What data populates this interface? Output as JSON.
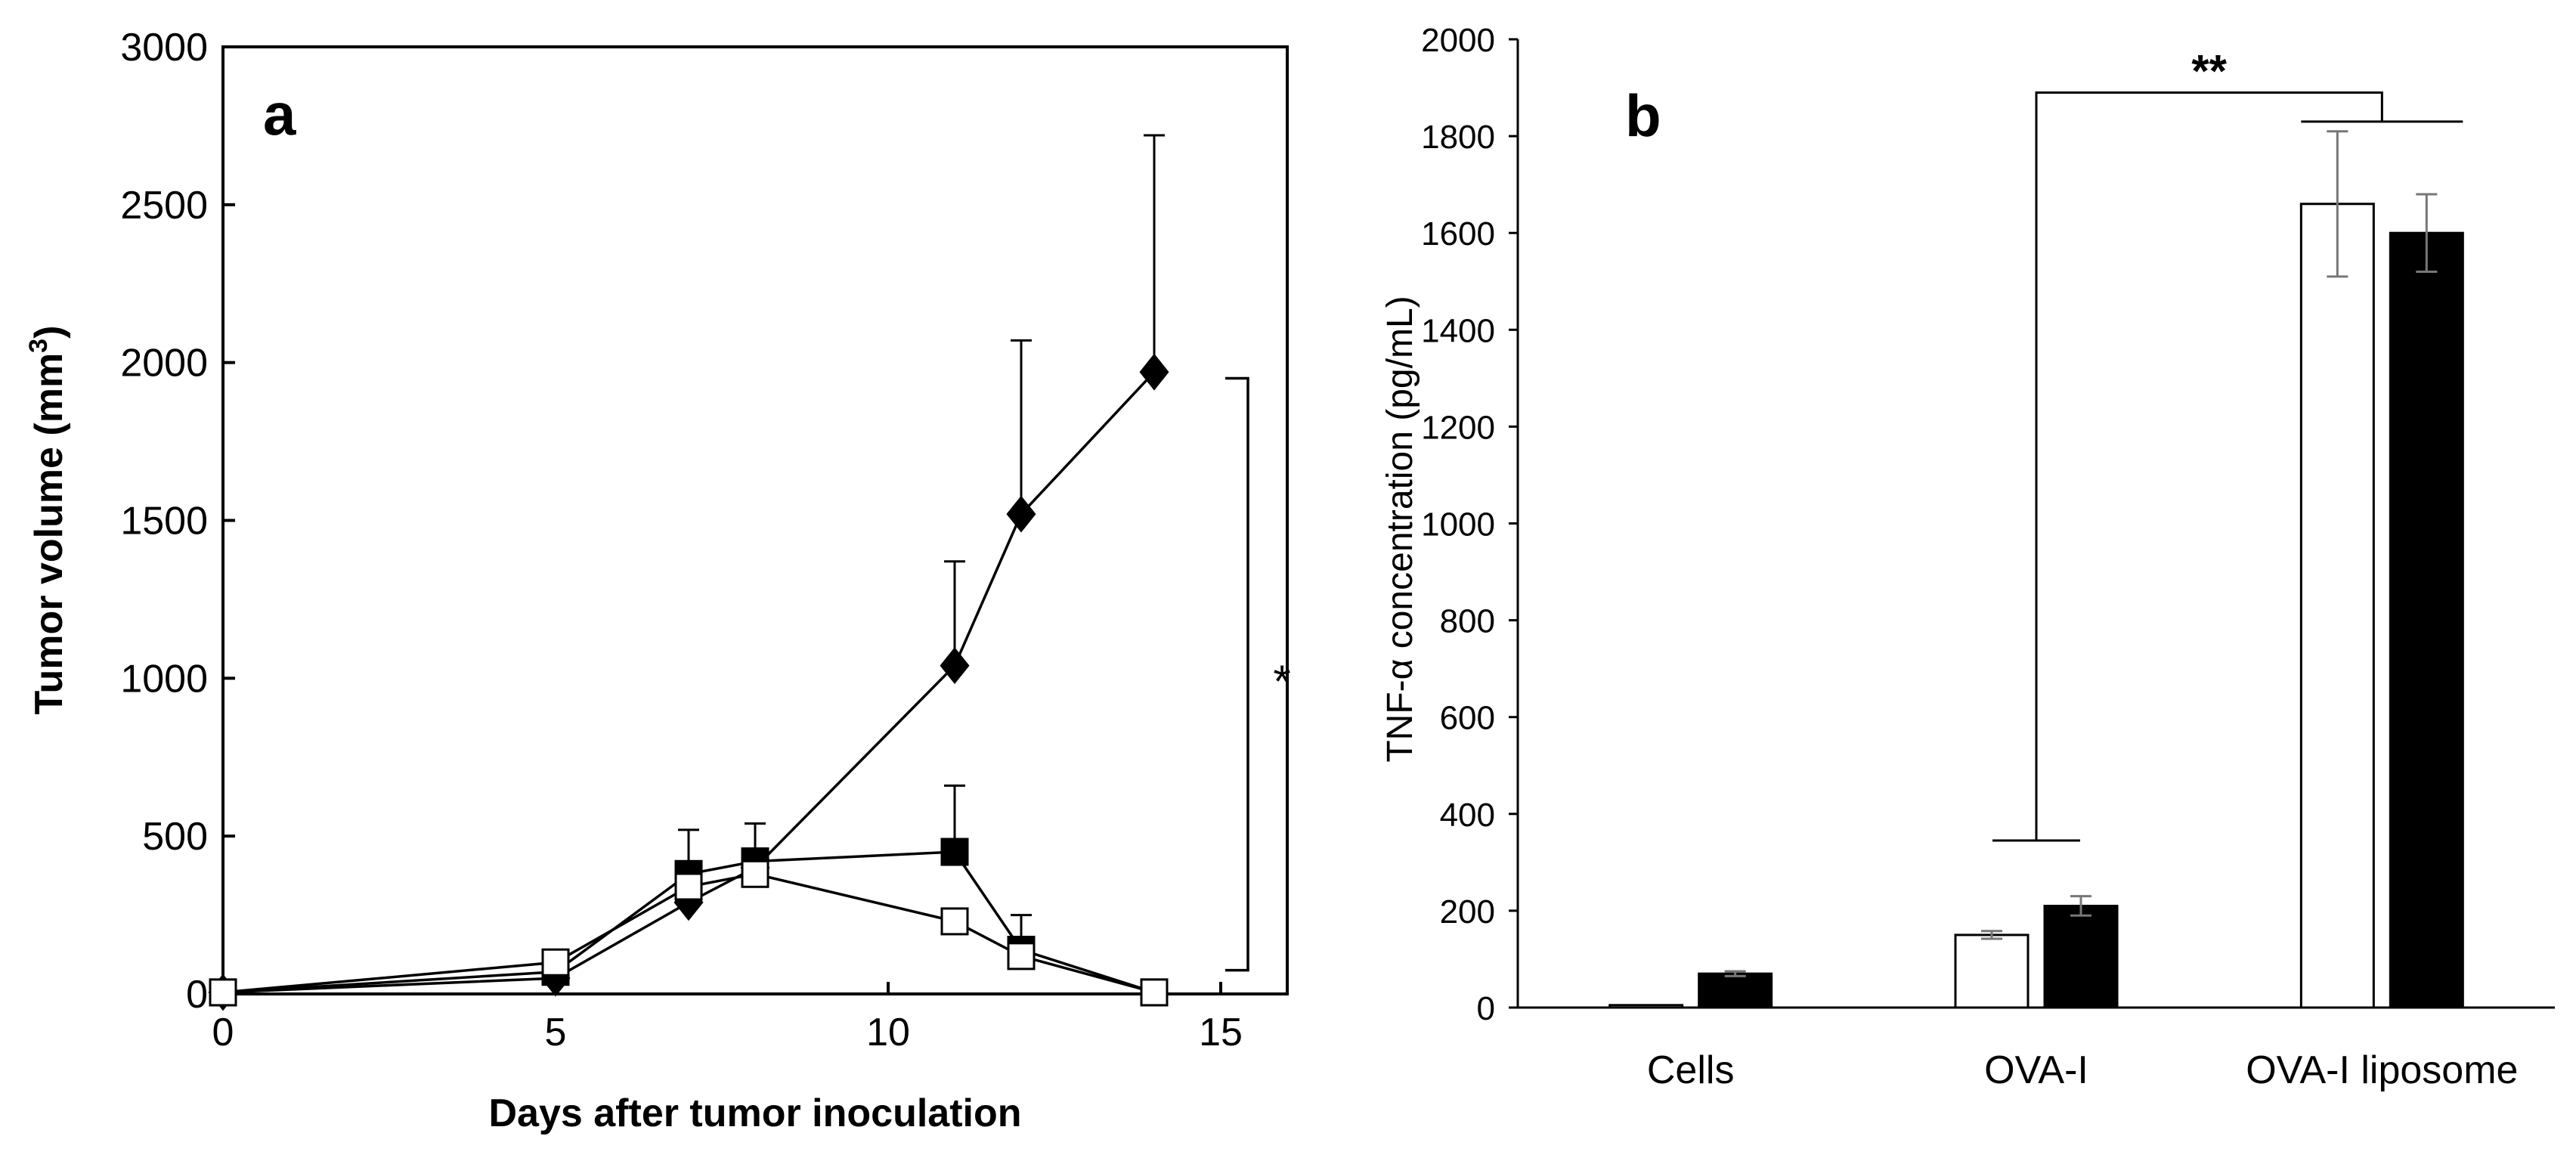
{
  "chart_data": [
    {
      "type": "line",
      "panel_label": "a",
      "title": "",
      "xlabel": "Days after tumor inoculation",
      "ylabel": "Tumor volume (mm3)",
      "ylabel_main": "Tumor volume (mm",
      "ylabel_sup": "3",
      "ylabel_close": ")",
      "xlim": [
        0,
        16
      ],
      "ylim": [
        0,
        3000
      ],
      "xticks": [
        0,
        5,
        10,
        15
      ],
      "yticks": [
        0,
        500,
        1000,
        1500,
        2000,
        2500,
        3000
      ],
      "grid": false,
      "series": [
        {
          "name": "filled diamond",
          "marker": "diamond",
          "fill": "#000000",
          "x": [
            0,
            5,
            7,
            8,
            11,
            12,
            14
          ],
          "y": [
            5,
            50,
            290,
            400,
            1040,
            1520,
            1970
          ],
          "err": [
            0,
            0,
            0,
            0,
            330,
            550,
            750
          ]
        },
        {
          "name": "filled square",
          "marker": "square",
          "fill": "#000000",
          "x": [
            0,
            5,
            7,
            8,
            11,
            12,
            14
          ],
          "y": [
            5,
            70,
            380,
            420,
            450,
            140,
            5
          ],
          "err": [
            0,
            0,
            140,
            120,
            210,
            110,
            0
          ]
        },
        {
          "name": "open square",
          "marker": "square",
          "fill": "#ffffff",
          "x": [
            0,
            5,
            7,
            8,
            11,
            12,
            14
          ],
          "y": [
            5,
            100,
            340,
            380,
            230,
            120,
            5
          ],
          "err": [
            0,
            0,
            80,
            0,
            0,
            0,
            0
          ]
        }
      ],
      "annotations": [
        {
          "type": "significance-bracket",
          "label": "*",
          "x": 14.5,
          "y_from": 75,
          "y_to": 1950
        }
      ]
    },
    {
      "type": "bar",
      "panel_label": "b",
      "title": "",
      "xlabel": "",
      "ylabel": "TNF-α concentration (pg/mL)",
      "ylim": [
        0,
        2000
      ],
      "yticks": [
        0,
        200,
        400,
        600,
        800,
        1000,
        1200,
        1400,
        1600,
        1800,
        2000
      ],
      "grid": false,
      "categories": [
        "Cells",
        "OVA-I",
        "OVA-I liposome"
      ],
      "series": [
        {
          "name": "open bar",
          "fill": "#ffffff",
          "values": [
            5,
            150,
            1660
          ],
          "err": [
            0,
            8,
            150
          ]
        },
        {
          "name": "filled bar",
          "fill": "#000000",
          "values": [
            70,
            210,
            1600
          ],
          "err": [
            5,
            20,
            80
          ]
        }
      ],
      "annotations": [
        {
          "type": "significance-bracket",
          "label": "**",
          "from": "OVA-I",
          "to": "OVA-I liposome",
          "y_top": 1890,
          "y_low_left": 345,
          "y_low_right": 1830
        }
      ]
    }
  ]
}
